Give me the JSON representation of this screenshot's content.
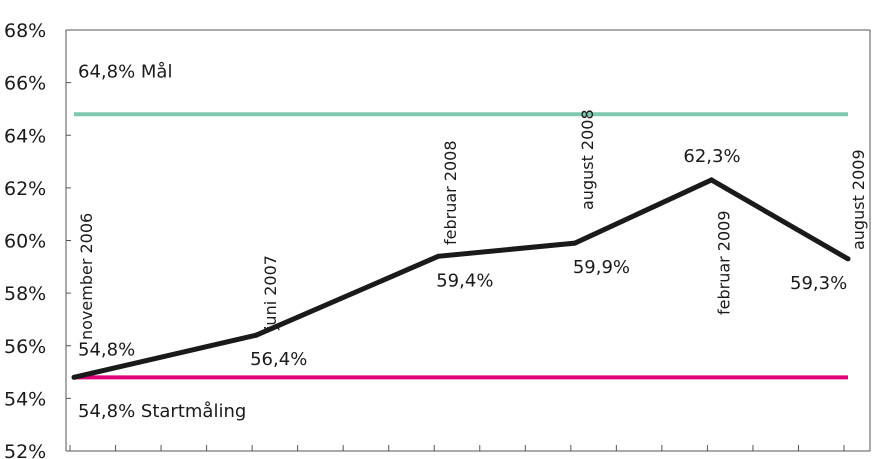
{
  "chart_data": {
    "type": "line",
    "ylim": [
      52,
      68
    ],
    "y_ticks": [
      "52%",
      "54%",
      "56%",
      "58%",
      "60%",
      "62%",
      "64%",
      "66%",
      "68%"
    ],
    "y_tick_values": [
      52,
      54,
      56,
      58,
      60,
      62,
      64,
      66,
      68
    ],
    "grid": false,
    "x_range": [
      0,
      17
    ],
    "x_minor_ticks": [
      0,
      1,
      2,
      3,
      4,
      5,
      6,
      7,
      8,
      9,
      10,
      11,
      12,
      13,
      14,
      15,
      16,
      17
    ],
    "series": [
      {
        "color": "#1a1a1a",
        "points": [
          {
            "x": 0,
            "y": 54.8,
            "date_label": "november 2006",
            "value_label": "54,8%"
          },
          {
            "x": 4,
            "y": 56.4,
            "date_label": "juni 2007",
            "value_label": "56,4%"
          },
          {
            "x": 8,
            "y": 59.4,
            "date_label": "februar 2008",
            "value_label": "59,4%"
          },
          {
            "x": 11,
            "y": 59.9,
            "date_label": "august 2008",
            "value_label": "59,9%"
          },
          {
            "x": 14,
            "y": 62.3,
            "date_label": "februar 2009",
            "value_label": "62,3%"
          },
          {
            "x": 17,
            "y": 59.3,
            "date_label": "august 2009",
            "value_label": "59,3%"
          }
        ]
      }
    ],
    "reference_lines": [
      {
        "y": 64.8,
        "label": "64,8% Mål",
        "color": "#7ec8b0"
      },
      {
        "y": 54.8,
        "label": "54,8% Startmåling",
        "color": "#e0007a"
      }
    ]
  }
}
